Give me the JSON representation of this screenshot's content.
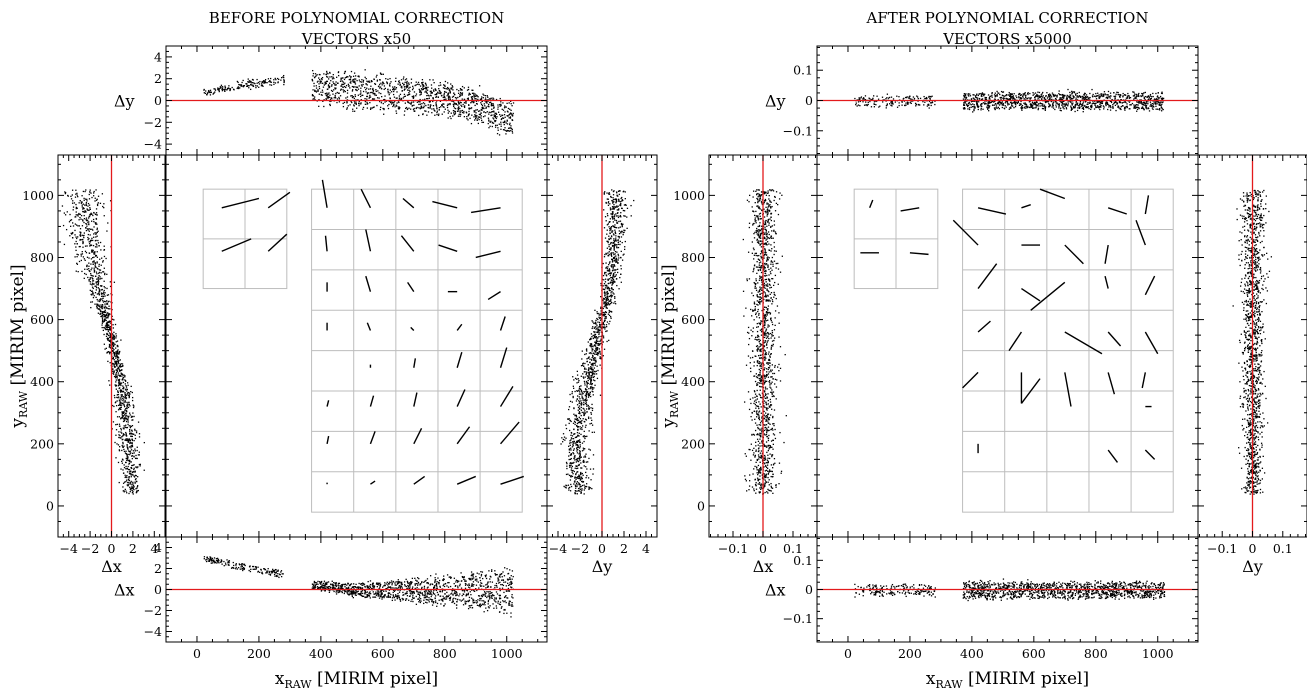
{
  "figure": {
    "panels": [
      {
        "title_line1": "BEFORE POLYNOMIAL CORRECTION",
        "title_line2": "VECTORS x50",
        "ylabel_main": "y",
        "ylabel_sub": "RAW",
        "ylabel_rest": " [MIRIM pixel]",
        "xlabel_main": "x",
        "xlabel_sub": "RAW",
        "xlabel_rest": " [MIRIM pixel]",
        "dx_label": "Δx",
        "dy_label": "Δy",
        "pos_ticks": [
          0,
          200,
          400,
          600,
          800,
          1000
        ],
        "res_ticks": [
          -4,
          -2,
          0,
          2,
          4
        ],
        "res_tick_labels": [
          "−4",
          "−2",
          "0",
          "2",
          "4"
        ],
        "res_side_tick_labels": [
          "−4",
          "−2",
          "0",
          "2",
          "4"
        ]
      },
      {
        "title_line1": "AFTER POLYNOMIAL CORRECTION",
        "title_line2": "VECTORS x5000",
        "ylabel_main": "y",
        "ylabel_sub": "RAW",
        "ylabel_rest": " [MIRIM pixel]",
        "xlabel_main": "x",
        "xlabel_sub": "RAW",
        "xlabel_rest": " [MIRIM pixel]",
        "dx_label": "Δx",
        "dy_label": "Δy",
        "pos_ticks": [
          0,
          200,
          400,
          600,
          800,
          1000
        ],
        "res_ticks": [
          -0.1,
          0,
          0.1
        ],
        "res_tick_labels": [
          "−0.1",
          "0",
          "0.1"
        ],
        "res_side_tick_labels": [
          "−0.1",
          "0",
          "0.1"
        ]
      }
    ]
  },
  "chart_data": [
    {
      "type": "scatter",
      "title": "BEFORE POLYNOMIAL CORRECTION VECTORS x50",
      "xlabel": "x_RAW [MIRIM pixel]",
      "ylabel": "y_RAW [MIRIM pixel]",
      "xlim": [
        -100,
        1130
      ],
      "ylim": [
        -100,
        1130
      ],
      "residual_lim": [
        -5,
        5
      ],
      "reference_line_color": "#e31a1c",
      "vector_scale": 50,
      "top_dy_vs_x_profile": {
        "x": [
          20,
          150,
          270,
          370,
          500,
          650,
          800,
          900,
          1000
        ],
        "dy_mean": [
          0.8,
          1.5,
          1.9,
          1.2,
          1.0,
          0.6,
          0.2,
          -0.5,
          -1.5
        ],
        "spread": [
          0.3,
          0.4,
          0.4,
          1.5,
          1.7,
          1.6,
          1.5,
          1.5,
          1.5
        ]
      },
      "bottom_dx_vs_x_profile": {
        "x": [
          20,
          150,
          270,
          370,
          500,
          650,
          800,
          900,
          1000
        ],
        "dx_mean": [
          3.0,
          2.2,
          1.5,
          0.5,
          0.0,
          0.0,
          0.0,
          0.0,
          0.0
        ],
        "spread": [
          0.3,
          0.4,
          0.4,
          0.4,
          0.6,
          1.0,
          1.5,
          1.8,
          2.2
        ]
      },
      "left_dx_vs_y_profile": {
        "y": [
          50,
          200,
          350,
          500,
          600,
          700,
          850,
          1000
        ],
        "dx_mean": [
          1.8,
          1.5,
          1.0,
          0.2,
          -0.5,
          -1.3,
          -2.2,
          -2.5
        ],
        "spread": [
          0.6,
          0.7,
          0.6,
          0.4,
          0.4,
          0.8,
          1.2,
          1.5
        ]
      },
      "right_dy_vs_y_profile": {
        "y": [
          50,
          200,
          350,
          500,
          650,
          800,
          950,
          1010
        ],
        "dy_mean": [
          -2.0,
          -2.5,
          -1.8,
          -0.8,
          0.3,
          1.0,
          1.2,
          1.2
        ],
        "spread": [
          0.8,
          0.9,
          0.8,
          0.6,
          0.5,
          0.6,
          0.7,
          0.8
        ]
      },
      "grid_vectors": [
        {
          "x": 80,
          "y": 960,
          "dx": 2.4,
          "dy": 0.6
        },
        {
          "x": 230,
          "y": 960,
          "dx": 1.4,
          "dy": 1.0
        },
        {
          "x": 80,
          "y": 820,
          "dx": 1.9,
          "dy": 0.8
        },
        {
          "x": 230,
          "y": 820,
          "dx": 1.2,
          "dy": 1.1
        },
        {
          "x": 420,
          "y": 960,
          "dx": -0.3,
          "dy": 1.8
        },
        {
          "x": 560,
          "y": 960,
          "dx": -0.6,
          "dy": 1.2
        },
        {
          "x": 700,
          "y": 960,
          "dx": -0.7,
          "dy": 0.6
        },
        {
          "x": 840,
          "y": 960,
          "dx": -1.6,
          "dy": 0.4
        },
        {
          "x": 980,
          "y": 960,
          "dx": -1.9,
          "dy": -0.3
        },
        {
          "x": 420,
          "y": 820,
          "dx": -0.1,
          "dy": 1.0
        },
        {
          "x": 560,
          "y": 820,
          "dx": -0.3,
          "dy": 1.4
        },
        {
          "x": 700,
          "y": 820,
          "dx": -0.8,
          "dy": 1.0
        },
        {
          "x": 840,
          "y": 820,
          "dx": -1.2,
          "dy": 0.4
        },
        {
          "x": 980,
          "y": 820,
          "dx": -1.6,
          "dy": -0.4
        },
        {
          "x": 420,
          "y": 690,
          "dx": 0.0,
          "dy": 0.6
        },
        {
          "x": 560,
          "y": 690,
          "dx": -0.3,
          "dy": 1.0
        },
        {
          "x": 700,
          "y": 690,
          "dx": -0.4,
          "dy": 0.6
        },
        {
          "x": 840,
          "y": 690,
          "dx": -0.6,
          "dy": 0.0
        },
        {
          "x": 980,
          "y": 690,
          "dx": -0.8,
          "dy": -0.5
        },
        {
          "x": 420,
          "y": 565,
          "dx": 0.0,
          "dy": 0.5
        },
        {
          "x": 560,
          "y": 565,
          "dx": -0.2,
          "dy": 0.5
        },
        {
          "x": 700,
          "y": 565,
          "dx": -0.2,
          "dy": 0.2
        },
        {
          "x": 840,
          "y": 565,
          "dx": 0.3,
          "dy": 0.4
        },
        {
          "x": 980,
          "y": 565,
          "dx": 0.3,
          "dy": 0.9
        },
        {
          "x": 420,
          "y": 445,
          "dx": 0.0,
          "dy": 0.0
        },
        {
          "x": 560,
          "y": 445,
          "dx": 0.0,
          "dy": 0.2
        },
        {
          "x": 700,
          "y": 445,
          "dx": 0.1,
          "dy": 0.6
        },
        {
          "x": 840,
          "y": 445,
          "dx": 0.3,
          "dy": 1.0
        },
        {
          "x": 980,
          "y": 445,
          "dx": 0.4,
          "dy": 1.3
        },
        {
          "x": 420,
          "y": 320,
          "dx": 0.1,
          "dy": 0.4
        },
        {
          "x": 560,
          "y": 320,
          "dx": 0.2,
          "dy": 0.7
        },
        {
          "x": 700,
          "y": 320,
          "dx": 0.2,
          "dy": 0.9
        },
        {
          "x": 840,
          "y": 320,
          "dx": 0.5,
          "dy": 1.1
        },
        {
          "x": 980,
          "y": 320,
          "dx": 0.8,
          "dy": 1.3
        },
        {
          "x": 420,
          "y": 200,
          "dx": 0.1,
          "dy": 0.5
        },
        {
          "x": 560,
          "y": 200,
          "dx": 0.3,
          "dy": 0.8
        },
        {
          "x": 700,
          "y": 200,
          "dx": 0.5,
          "dy": 1.0
        },
        {
          "x": 840,
          "y": 200,
          "dx": 0.8,
          "dy": 1.1
        },
        {
          "x": 980,
          "y": 200,
          "dx": 1.2,
          "dy": 1.4
        },
        {
          "x": 420,
          "y": 70,
          "dx": 0.0,
          "dy": 0.1
        },
        {
          "x": 560,
          "y": 70,
          "dx": 0.3,
          "dy": 0.2
        },
        {
          "x": 700,
          "y": 70,
          "dx": 0.7,
          "dy": 0.5
        },
        {
          "x": 840,
          "y": 70,
          "dx": 1.2,
          "dy": 0.5
        },
        {
          "x": 980,
          "y": 70,
          "dx": 1.5,
          "dy": 0.5
        }
      ],
      "detector_boxes": [
        {
          "x0": 20,
          "y0": 700,
          "x1": 290,
          "y1": 1020,
          "cols": 2,
          "rows": 2
        },
        {
          "x0": 370,
          "y0": -20,
          "x1": 1050,
          "y1": 1020,
          "cols": 5,
          "rows": 8
        }
      ]
    },
    {
      "type": "scatter",
      "title": "AFTER POLYNOMIAL CORRECTION VECTORS x5000",
      "xlabel": "x_RAW [MIRIM pixel]",
      "ylabel": "y_RAW [MIRIM pixel]",
      "xlim": [
        -100,
        1130
      ],
      "ylim": [
        -100,
        1130
      ],
      "residual_lim": [
        -0.18,
        0.18
      ],
      "reference_line_color": "#e31a1c",
      "vector_scale": 5000,
      "top_dy_vs_x_profile": {
        "x": [
          20,
          270,
          370,
          1020
        ],
        "dy_mean": [
          0.0,
          0.0,
          0.0,
          0.0
        ],
        "spread": [
          0.02,
          0.02,
          0.03,
          0.03
        ]
      },
      "bottom_dx_vs_x_profile": {
        "x": [
          20,
          270,
          370,
          1020
        ],
        "dx_mean": [
          0.0,
          0.0,
          0.0,
          0.0
        ],
        "spread": [
          0.02,
          0.02,
          0.03,
          0.03
        ]
      },
      "left_dx_vs_y_profile": {
        "y": [
          50,
          1010
        ],
        "dx_mean": [
          0.0,
          0.0
        ],
        "spread": [
          0.03,
          0.03
        ]
      },
      "right_dy_vs_y_profile": {
        "y": [
          50,
          1010
        ],
        "dy_mean": [
          0.0,
          0.0
        ],
        "spread": [
          0.02,
          0.03
        ]
      },
      "grid_vectors": [
        {
          "x": 70,
          "y": 960,
          "dx": 0.002,
          "dy": 0.005
        },
        {
          "x": 170,
          "y": 950,
          "dx": 0.012,
          "dy": 0.002
        },
        {
          "x": 40,
          "y": 815,
          "dx": 0.012,
          "dy": 0.0
        },
        {
          "x": 200,
          "y": 815,
          "dx": 0.012,
          "dy": -0.001
        },
        {
          "x": 420,
          "y": 960,
          "dx": 0.018,
          "dy": -0.004
        },
        {
          "x": 560,
          "y": 960,
          "dx": 0.006,
          "dy": 0.002
        },
        {
          "x": 700,
          "y": 990,
          "dx": -0.016,
          "dy": 0.006
        },
        {
          "x": 840,
          "y": 960,
          "dx": 0.012,
          "dy": -0.004
        },
        {
          "x": 960,
          "y": 940,
          "dx": 0.002,
          "dy": 0.012
        },
        {
          "x": 420,
          "y": 840,
          "dx": -0.016,
          "dy": 0.016
        },
        {
          "x": 560,
          "y": 840,
          "dx": 0.012,
          "dy": 0.0
        },
        {
          "x": 700,
          "y": 840,
          "dx": 0.012,
          "dy": -0.012
        },
        {
          "x": 840,
          "y": 840,
          "dx": -0.002,
          "dy": -0.012
        },
        {
          "x": 960,
          "y": 840,
          "dx": -0.006,
          "dy": 0.016
        },
        {
          "x": 420,
          "y": 700,
          "dx": 0.012,
          "dy": 0.016
        },
        {
          "x": 560,
          "y": 700,
          "dx": 0.012,
          "dy": -0.008
        },
        {
          "x": 700,
          "y": 720,
          "dx": -0.022,
          "dy": -0.018
        },
        {
          "x": 840,
          "y": 700,
          "dx": -0.002,
          "dy": 0.008
        },
        {
          "x": 960,
          "y": 680,
          "dx": 0.006,
          "dy": 0.012
        },
        {
          "x": 420,
          "y": 560,
          "dx": 0.008,
          "dy": 0.007
        },
        {
          "x": 560,
          "y": 560,
          "dx": -0.008,
          "dy": -0.012
        },
        {
          "x": 700,
          "y": 560,
          "dx": 0.024,
          "dy": -0.014
        },
        {
          "x": 840,
          "y": 560,
          "dx": 0.008,
          "dy": -0.009
        },
        {
          "x": 960,
          "y": 560,
          "dx": 0.008,
          "dy": -0.014
        },
        {
          "x": 420,
          "y": 430,
          "dx": -0.01,
          "dy": -0.01
        },
        {
          "x": 560,
          "y": 430,
          "dx": 0.0,
          "dy": -0.02
        },
        {
          "x": 700,
          "y": 430,
          "dx": 0.004,
          "dy": -0.022
        },
        {
          "x": 840,
          "y": 430,
          "dx": 0.004,
          "dy": -0.014
        },
        {
          "x": 960,
          "y": 430,
          "dx": -0.002,
          "dy": -0.01
        },
        {
          "x": 420,
          "y": 320,
          "dx": 0.0,
          "dy": 0.0
        },
        {
          "x": 560,
          "y": 330,
          "dx": 0.012,
          "dy": 0.016
        },
        {
          "x": 700,
          "y": 320,
          "dx": 0.0,
          "dy": 0.0
        },
        {
          "x": 840,
          "y": 320,
          "dx": 0.0,
          "dy": 0.0
        },
        {
          "x": 960,
          "y": 320,
          "dx": 0.004,
          "dy": 0.0
        },
        {
          "x": 420,
          "y": 200,
          "dx": 0.0,
          "dy": -0.006
        },
        {
          "x": 560,
          "y": 200,
          "dx": 0.0,
          "dy": 0.0
        },
        {
          "x": 700,
          "y": 200,
          "dx": 0.0,
          "dy": 0.0
        },
        {
          "x": 840,
          "y": 180,
          "dx": 0.006,
          "dy": -0.008
        },
        {
          "x": 960,
          "y": 180,
          "dx": 0.006,
          "dy": -0.006
        },
        {
          "x": 420,
          "y": 70,
          "dx": 0.0,
          "dy": 0.0
        },
        {
          "x": 560,
          "y": 70,
          "dx": 0.0,
          "dy": 0.0
        },
        {
          "x": 700,
          "y": 70,
          "dx": 0.0,
          "dy": 0.0
        },
        {
          "x": 840,
          "y": 70,
          "dx": 0.0,
          "dy": 0.0
        },
        {
          "x": 960,
          "y": 70,
          "dx": 0.0,
          "dy": 0.0
        }
      ],
      "detector_boxes": [
        {
          "x0": 20,
          "y0": 700,
          "x1": 290,
          "y1": 1020,
          "cols": 2,
          "rows": 2
        },
        {
          "x0": 370,
          "y0": -20,
          "x1": 1050,
          "y1": 1020,
          "cols": 5,
          "rows": 8
        }
      ]
    }
  ]
}
